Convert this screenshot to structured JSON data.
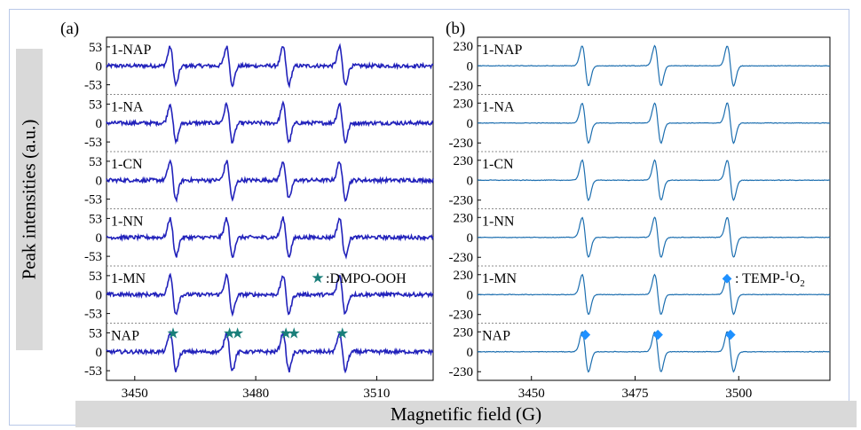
{
  "figure": {
    "ylabel": "Peak intensities (a.u.)",
    "xlabel": "Magnetific field (G)"
  },
  "colors": {
    "panel_a_line": "#2222bb",
    "panel_b_line": "#1d6fb0",
    "star_marker": "#1a7f7a",
    "diamond_marker": "#1e90ff"
  },
  "chart_data": [
    {
      "type": "line",
      "panel_label": "(a)",
      "x_ticks": [
        3450,
        3480,
        3510
      ],
      "xlim": [
        3443,
        3524
      ],
      "y_ticks": [
        53,
        0,
        -53
      ],
      "ylim": [
        -80,
        80
      ],
      "series_labels": [
        "1-NAP",
        "1-NA",
        "1-CN",
        "1-NN",
        "1-MN",
        "NAP"
      ],
      "peak_positions": [
        3459.5,
        3473.5,
        3487.5,
        3501.5
      ],
      "peak_amplitude": 53,
      "marker_symbol": "★",
      "marker_x": [
        3459.5,
        3473.5,
        3475.5,
        3487.5,
        3489.5,
        3501.5
      ],
      "marker_legend": ":DMPO-OOH",
      "grid": false
    },
    {
      "type": "line",
      "panel_label": "(b)",
      "x_ticks": [
        3450,
        3475,
        3500
      ],
      "xlim": [
        3437,
        3522
      ],
      "y_ticks": [
        230,
        0,
        -230
      ],
      "ylim": [
        -330,
        330
      ],
      "series_labels": [
        "1-NAP",
        "1-NA",
        "1-CN",
        "1-NN",
        "1-MN",
        "NAP"
      ],
      "peak_positions": [
        3463,
        3480.5,
        3498
      ],
      "peak_amplitude": 230,
      "marker_symbol": "◆",
      "marker_x": [
        3463,
        3480.5,
        3498
      ],
      "marker_legend_prefix": ": TEMP-",
      "marker_legend_sup": "1",
      "marker_legend_mid": "O",
      "marker_legend_sub": "2",
      "grid": false
    }
  ]
}
